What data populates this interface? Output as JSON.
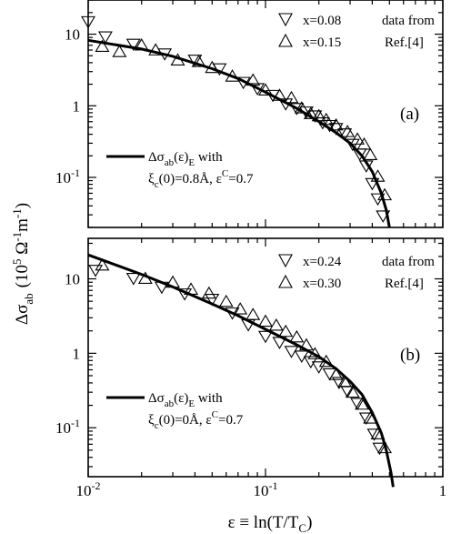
{
  "chart_data": [
    {
      "type": "scatter",
      "panel_label": "(a)",
      "x_scale": "log",
      "y_scale": "log",
      "xlim": [
        0.01,
        1
      ],
      "ylim": [
        0.02,
        30
      ],
      "y_ticks": [
        {
          "value": 10,
          "label": "10"
        },
        {
          "value": 1,
          "label": "1"
        },
        {
          "value": 0.1,
          "label": "10-1"
        }
      ],
      "series": [
        {
          "name": "x=0.08",
          "marker": "triangle-down",
          "points": [
            [
              0.01,
              15.5
            ],
            [
              0.0125,
              9.5
            ],
            [
              0.018,
              7.5
            ],
            [
              0.027,
              5.5
            ],
            [
              0.04,
              4.5
            ],
            [
              0.055,
              3.4
            ],
            [
              0.075,
              2.2
            ],
            [
              0.09,
              1.8
            ],
            [
              0.11,
              1.45
            ],
            [
              0.13,
              1.1
            ],
            [
              0.15,
              0.95
            ],
            [
              0.17,
              0.85
            ],
            [
              0.19,
              0.75
            ],
            [
              0.21,
              0.6
            ],
            [
              0.23,
              0.55
            ],
            [
              0.25,
              0.5
            ],
            [
              0.28,
              0.42
            ],
            [
              0.31,
              0.3
            ],
            [
              0.34,
              0.22
            ],
            [
              0.37,
              0.15
            ],
            [
              0.4,
              0.085
            ],
            [
              0.43,
              0.052
            ],
            [
              0.46,
              0.03
            ]
          ]
        },
        {
          "name": "x=0.15",
          "marker": "triangle-up",
          "points": [
            [
              0.012,
              6.5
            ],
            [
              0.015,
              5.5
            ],
            [
              0.02,
              6.8
            ],
            [
              0.024,
              5.8
            ],
            [
              0.032,
              4.2
            ],
            [
              0.042,
              4.0
            ],
            [
              0.05,
              3.3
            ],
            [
              0.065,
              2.5
            ],
            [
              0.085,
              2.2
            ],
            [
              0.1,
              1.6
            ],
            [
              0.12,
              1.35
            ],
            [
              0.14,
              1.25
            ],
            [
              0.16,
              0.9
            ],
            [
              0.18,
              0.75
            ],
            [
              0.2,
              0.7
            ],
            [
              0.22,
              0.62
            ],
            [
              0.25,
              0.52
            ],
            [
              0.29,
              0.42
            ],
            [
              0.33,
              0.33
            ],
            [
              0.36,
              0.28
            ],
            [
              0.39,
              0.2
            ],
            [
              0.43,
              0.1
            ],
            [
              0.47,
              0.055
            ]
          ]
        }
      ],
      "fit_curve": {
        "points": [
          [
            0.01,
            8.2
          ],
          [
            0.02,
            6.2
          ],
          [
            0.03,
            4.9
          ],
          [
            0.05,
            3.3
          ],
          [
            0.07,
            2.4
          ],
          [
            0.1,
            1.55
          ],
          [
            0.15,
            0.92
          ],
          [
            0.2,
            0.6
          ],
          [
            0.25,
            0.42
          ],
          [
            0.3,
            0.3
          ],
          [
            0.35,
            0.2
          ],
          [
            0.4,
            0.12
          ],
          [
            0.45,
            0.06
          ],
          [
            0.48,
            0.035
          ],
          [
            0.5,
            0.02
          ]
        ],
        "legend": {
          "text": "Δσab(ε)E with",
          "line2": "ξc(0)=0.8Å, εC=0.7"
        }
      },
      "legend_entries": [
        "x=0.08",
        "x=0.15"
      ],
      "legend_note": [
        "data from",
        "Ref.[4]"
      ]
    },
    {
      "type": "scatter",
      "panel_label": "(b)",
      "x_scale": "log",
      "y_scale": "log",
      "xlim": [
        0.01,
        1
      ],
      "ylim": [
        0.022,
        35
      ],
      "y_ticks": [
        {
          "value": 10,
          "label": "10"
        },
        {
          "value": 1,
          "label": "1"
        },
        {
          "value": 0.1,
          "label": "10-1"
        }
      ],
      "x_ticks": [
        {
          "value": 0.01,
          "label": "10-2"
        },
        {
          "value": 0.1,
          "label": "10-1"
        },
        {
          "value": 1,
          "label": "1"
        }
      ],
      "series": [
        {
          "name": "x=0.24",
          "marker": "triangle-down",
          "points": [
            [
              0.011,
              13.5
            ],
            [
              0.018,
              10.5
            ],
            [
              0.026,
              8.0
            ],
            [
              0.035,
              6.5
            ],
            [
              0.05,
              5.5
            ],
            [
              0.065,
              3.6
            ],
            [
              0.08,
              2.5
            ],
            [
              0.1,
              1.75
            ],
            [
              0.12,
              1.45
            ],
            [
              0.14,
              1.1
            ],
            [
              0.16,
              0.95
            ],
            [
              0.18,
              0.8
            ],
            [
              0.2,
              0.68
            ],
            [
              0.23,
              0.55
            ],
            [
              0.26,
              0.42
            ],
            [
              0.29,
              0.32
            ],
            [
              0.33,
              0.22
            ],
            [
              0.37,
              0.14
            ],
            [
              0.41,
              0.085
            ],
            [
              0.44,
              0.055
            ]
          ]
        },
        {
          "name": "x=0.30",
          "marker": "triangle-up",
          "points": [
            [
              0.012,
              14.8
            ],
            [
              0.021,
              9.8
            ],
            [
              0.03,
              8.7
            ],
            [
              0.038,
              7.0
            ],
            [
              0.048,
              6.2
            ],
            [
              0.06,
              4.8
            ],
            [
              0.072,
              3.8
            ],
            [
              0.085,
              3.2
            ],
            [
              0.1,
              2.6
            ],
            [
              0.115,
              2.3
            ],
            [
              0.13,
              1.9
            ],
            [
              0.15,
              1.6
            ],
            [
              0.17,
              1.25
            ],
            [
              0.19,
              0.95
            ],
            [
              0.22,
              0.75
            ],
            [
              0.25,
              0.5
            ],
            [
              0.28,
              0.4
            ],
            [
              0.31,
              0.29
            ],
            [
              0.35,
              0.2
            ],
            [
              0.39,
              0.13
            ],
            [
              0.43,
              0.08
            ],
            [
              0.47,
              0.052
            ]
          ]
        }
      ],
      "fit_curve": {
        "points": [
          [
            0.01,
            21
          ],
          [
            0.02,
            11.5
          ],
          [
            0.03,
            7.8
          ],
          [
            0.05,
            4.6
          ],
          [
            0.07,
            3.2
          ],
          [
            0.1,
            2.1
          ],
          [
            0.15,
            1.3
          ],
          [
            0.2,
            0.9
          ],
          [
            0.25,
            0.62
          ],
          [
            0.3,
            0.42
          ],
          [
            0.35,
            0.28
          ],
          [
            0.4,
            0.16
          ],
          [
            0.45,
            0.085
          ],
          [
            0.48,
            0.05
          ],
          [
            0.51,
            0.025
          ],
          [
            0.525,
            0.016
          ]
        ],
        "legend": {
          "text": "Δσab(ε)E with",
          "line2": "ξc(0)=0Å, εC=0.7"
        }
      },
      "legend_entries": [
        "x=0.24",
        "x=0.30"
      ],
      "legend_note": [
        "data from",
        "Ref.[4]"
      ]
    }
  ],
  "axes": {
    "ylabel": "Δσab (105 Ω-1m-1)",
    "xlabel": "ε ≡ ln(T/TC)"
  }
}
